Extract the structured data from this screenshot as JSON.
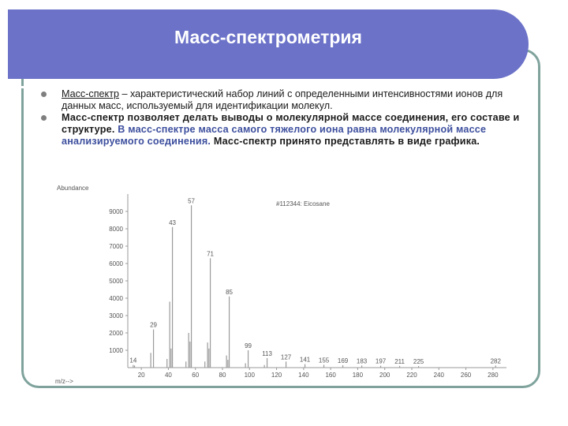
{
  "slide": {
    "title": "Масс-спектрометрия"
  },
  "bullets": {
    "b1_term": "Масс-спектр",
    "b1_rest": " – характеристический набор линий с определенными интенсивностями ионов для данных масс, используемый для идентификации молекул.",
    "b2_text": "Масс-спектр позволяет делать выводы о молекулярной массе соединения, его составе и структуре. ",
    "b2_highlight": "В масс-спектре масса самого тяжелого иона равна молекулярной массе анализируемого соединения.",
    "b2_tail": " Масс-спектр принято представлять в виде графика."
  },
  "colors": {
    "title_bar": "#6b72c8",
    "frame": "#7fa39c",
    "highlight_text": "#3d4f9e"
  },
  "chart_data": {
    "type": "bar",
    "title": "#112344: Eicosane",
    "ylabel": "Abundance",
    "xlabel": "m/z-->",
    "ylim": [
      0,
      10000
    ],
    "xlim": [
      10,
      290
    ],
    "y_ticks": [
      1000,
      2000,
      3000,
      4000,
      5000,
      6000,
      7000,
      8000,
      9000
    ],
    "x_ticks": [
      20,
      40,
      60,
      80,
      100,
      120,
      140,
      160,
      180,
      200,
      220,
      240,
      260,
      280
    ],
    "peaks": [
      {
        "mz": 14,
        "abundance": 150,
        "label": "14"
      },
      {
        "mz": 15,
        "abundance": 120,
        "label": ""
      },
      {
        "mz": 27,
        "abundance": 850,
        "label": ""
      },
      {
        "mz": 29,
        "abundance": 2200,
        "label": "29"
      },
      {
        "mz": 39,
        "abundance": 500,
        "label": ""
      },
      {
        "mz": 41,
        "abundance": 3800,
        "label": ""
      },
      {
        "mz": 42,
        "abundance": 1100,
        "label": ""
      },
      {
        "mz": 43,
        "abundance": 8100,
        "label": "43"
      },
      {
        "mz": 53,
        "abundance": 350,
        "label": ""
      },
      {
        "mz": 55,
        "abundance": 2000,
        "label": ""
      },
      {
        "mz": 56,
        "abundance": 1500,
        "label": ""
      },
      {
        "mz": 57,
        "abundance": 9350,
        "label": "57"
      },
      {
        "mz": 67,
        "abundance": 350,
        "label": ""
      },
      {
        "mz": 69,
        "abundance": 1450,
        "label": ""
      },
      {
        "mz": 70,
        "abundance": 1100,
        "label": ""
      },
      {
        "mz": 71,
        "abundance": 6300,
        "label": "71"
      },
      {
        "mz": 83,
        "abundance": 700,
        "label": ""
      },
      {
        "mz": 84,
        "abundance": 450,
        "label": ""
      },
      {
        "mz": 85,
        "abundance": 4100,
        "label": "85"
      },
      {
        "mz": 97,
        "abundance": 250,
        "label": ""
      },
      {
        "mz": 99,
        "abundance": 1000,
        "label": "99"
      },
      {
        "mz": 111,
        "abundance": 150,
        "label": ""
      },
      {
        "mz": 113,
        "abundance": 550,
        "label": "113"
      },
      {
        "mz": 127,
        "abundance": 350,
        "label": "127"
      },
      {
        "mz": 141,
        "abundance": 200,
        "label": "141"
      },
      {
        "mz": 155,
        "abundance": 160,
        "label": "155"
      },
      {
        "mz": 169,
        "abundance": 140,
        "label": "169"
      },
      {
        "mz": 183,
        "abundance": 120,
        "label": "183"
      },
      {
        "mz": 197,
        "abundance": 110,
        "label": "197"
      },
      {
        "mz": 211,
        "abundance": 100,
        "label": "211"
      },
      {
        "mz": 225,
        "abundance": 90,
        "label": "225"
      },
      {
        "mz": 282,
        "abundance": 120,
        "label": "282"
      }
    ]
  }
}
